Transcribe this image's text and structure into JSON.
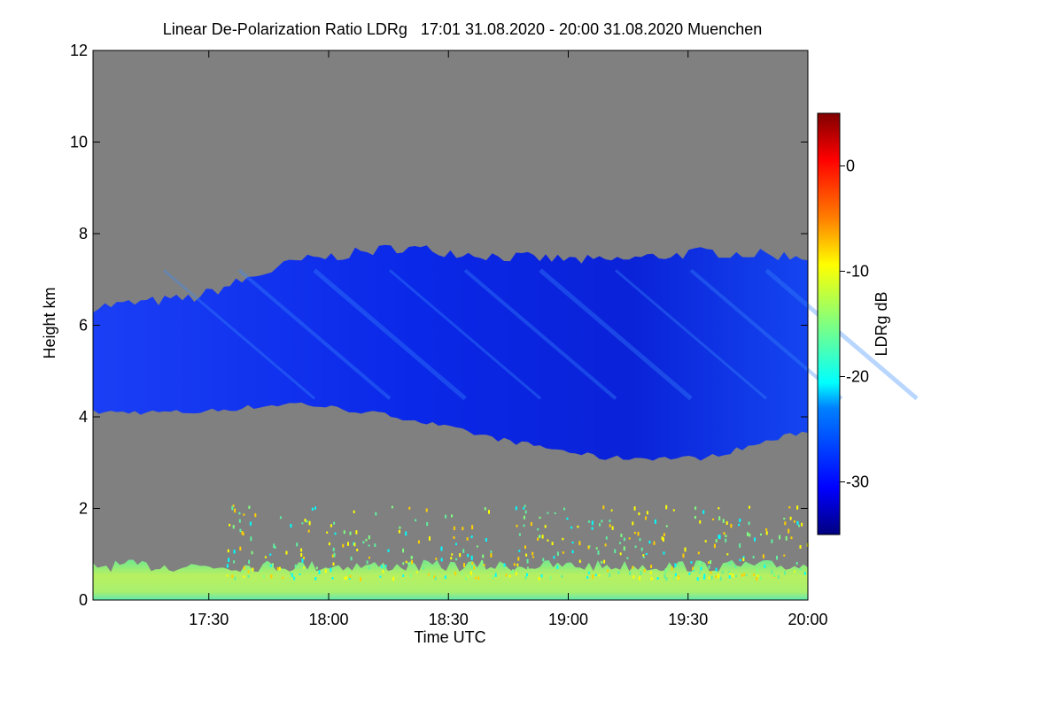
{
  "chart_data": {
    "type": "heatmap",
    "title": "Linear De-Polarization Ratio LDRg   17:01 31.08.2020 - 20:00 31.08.2020 Muenchen",
    "xlabel": "Time UTC",
    "ylabel": "Height km",
    "x_range": [
      "17:01",
      "20:00"
    ],
    "x_ticks": [
      "17:30",
      "18:00",
      "18:30",
      "19:00",
      "19:30",
      "20:00"
    ],
    "ylim": [
      0,
      12
    ],
    "y_ticks": [
      "0",
      "2",
      "4",
      "6",
      "8",
      "10",
      "12"
    ],
    "colorbar": {
      "label": "LDRg dB",
      "range": [
        -35,
        5
      ],
      "ticks": [
        "0",
        "-10",
        "-20",
        "-30"
      ],
      "colormap": [
        "#00007f",
        "#0000ff",
        "#0080ff",
        "#00ffff",
        "#80ff80",
        "#ffff00",
        "#ff8000",
        "#ff0000",
        "#800000"
      ]
    },
    "no_data_color": "#808080",
    "features": [
      {
        "name": "ice cloud layer",
        "time_start": "17:01",
        "time_end": "20:00",
        "base_km": [
          4.1,
          4.1,
          4.3,
          4.0,
          3.5,
          3.1,
          3.1,
          3.7
        ],
        "top_km": [
          6.4,
          6.6,
          7.4,
          7.7,
          7.5,
          7.4,
          7.6,
          7.5
        ],
        "ldr_db": -30
      },
      {
        "name": "boundary layer aerosol",
        "time_start": "17:01",
        "time_end": "20:00",
        "base_km": 0,
        "top_km": 0.8,
        "ldr_db": -13
      }
    ]
  }
}
